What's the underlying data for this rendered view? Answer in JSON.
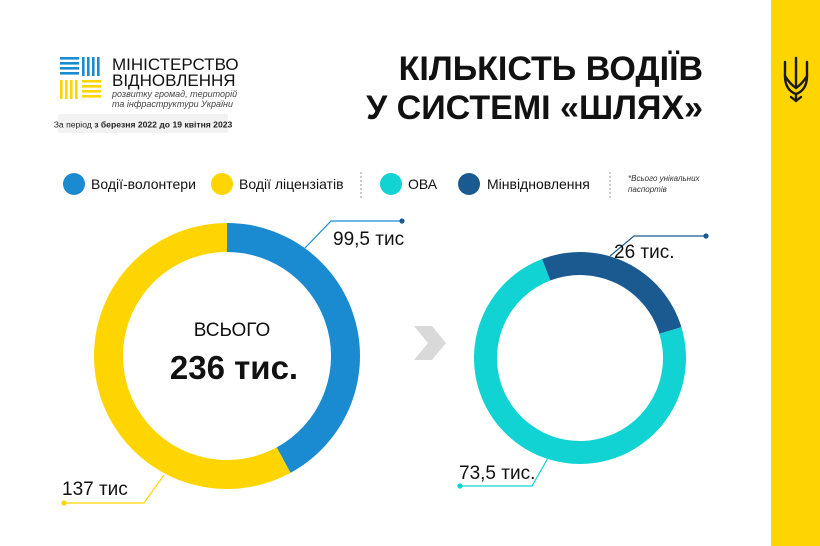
{
  "header": {
    "ministry_line1": "МІНІСТЕРСТВО",
    "ministry_line2": "ВІДНОВЛЕННЯ",
    "ministry_sub1": "розвитку громад, територій",
    "ministry_sub2": "та інфраструктури України",
    "period_prefix": "За період ",
    "period_dates": "з березня 2022 до 19 квітня 2023",
    "title_line1": "КІЛЬКІСТЬ ВОДІЇВ",
    "title_line2": "У СИСТЕМІ «ШЛЯХ»"
  },
  "legend": {
    "items": [
      {
        "label": "Водії-волонтери",
        "color": "#1A8BD0"
      },
      {
        "label": "Водії ліцензіатів",
        "color": "#FFD500"
      },
      {
        "label": "ОВА",
        "color": "#12D3D3"
      },
      {
        "label": "Мінвідновлення",
        "color": "#1A5A91"
      }
    ],
    "note_line1": "*Всього унікальних",
    "note_line2": "паспортів"
  },
  "colors": {
    "volunteers": "#1A8BD0",
    "licensees": "#FFD500",
    "ova": "#12D3D3",
    "ministry": "#1A5A91",
    "accent_band": "#FFD500",
    "text": "#111111",
    "chevron": "#D9D9D9"
  },
  "chart_data": [
    {
      "type": "pie",
      "style": "donut",
      "center_label": "ВСЬОГО",
      "center_value": "236 тис.",
      "slices": [
        {
          "name": "Водії-волонтери",
          "value": 99.5,
          "label": "99,5 тис",
          "color": "#1A8BD0"
        },
        {
          "name": "Водії ліцензіатів",
          "value": 137,
          "label": "137 тис",
          "color": "#FFD500"
        }
      ]
    },
    {
      "type": "pie",
      "style": "donut",
      "slices": [
        {
          "name": "Мінвідновлення",
          "value": 26,
          "label": "26 тис.",
          "color": "#1A5A91"
        },
        {
          "name": "ОВА",
          "value": 73.5,
          "label": "73,5 тис.",
          "color": "#12D3D3"
        }
      ]
    }
  ],
  "icons": {
    "logo": "ministry-logo-icon",
    "chevron": "chevron-right-icon",
    "emblem": "trident-emblem-icon"
  }
}
